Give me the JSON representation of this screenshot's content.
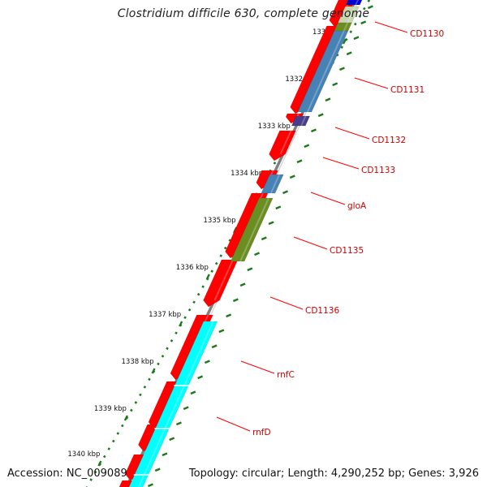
{
  "title": "Clostridium difficile 630, complete genome",
  "footer": {
    "accession": "Accession: NC_009089",
    "summary": "Topology: circular; Length: 4,290,252 bp; Genes: 3,926"
  },
  "colors": {
    "forward_cds": "#ff0000",
    "backbone": "#808080",
    "tick": "#1a7a1a",
    "label_line": "#ff0000",
    "label_text": "#cc0000",
    "steelblue": "#4682b4",
    "olive": "#6b8e23",
    "slateblue": "#483d8b",
    "blue": "#0000cd",
    "cyan": "#00ffff"
  },
  "ruler": {
    "unit": "kbp",
    "labels": [
      "1331 kbp",
      "1332 kbp",
      "1333 kbp",
      "1334 kbp",
      "1335 kbp",
      "1336 kbp",
      "1337 kbp",
      "1338 kbp",
      "1339 kbp",
      "1340 kbp"
    ]
  },
  "gene_labels": [
    "CD1130",
    "CD1131",
    "CD1132",
    "CD1133",
    "gloA",
    "CD1135",
    "CD1136",
    "rnfC",
    "rnfD"
  ]
}
